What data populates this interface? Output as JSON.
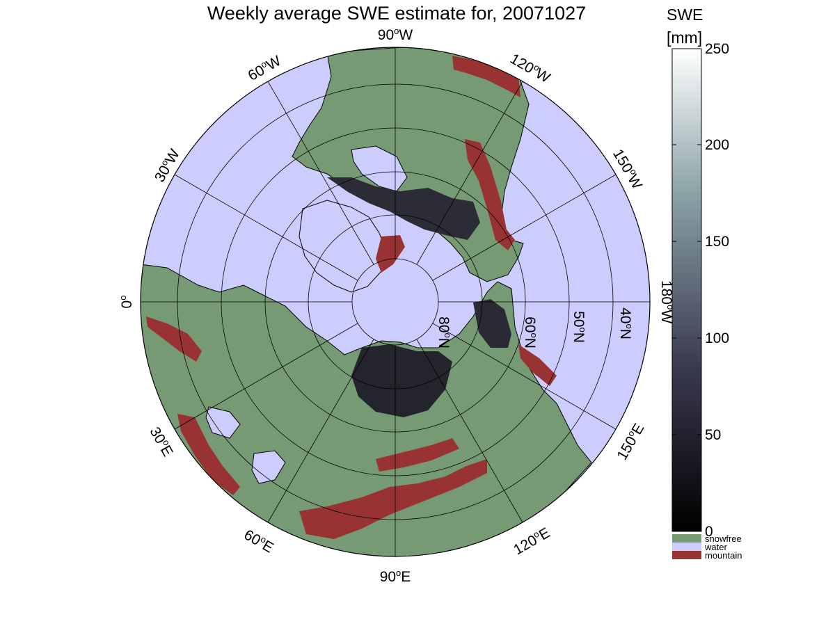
{
  "title": "Weekly average SWE estimate for, 20071027",
  "colorbar": {
    "title_line1": "SWE",
    "title_line2": "[mm]",
    "ticks": [
      0,
      50,
      100,
      150,
      200,
      250
    ],
    "range": [
      0,
      250
    ],
    "gradient": [
      "#000000",
      "#ffffff"
    ],
    "categories": [
      {
        "name": "snowfree",
        "color": "#769a73"
      },
      {
        "name": "water",
        "color": "#ccccfd"
      },
      {
        "name": "mountain",
        "color": "#993333"
      }
    ]
  },
  "map": {
    "projection": "polar stereographic (north pole)",
    "meridian_labels": [
      {
        "deg": "90",
        "hemi": "W"
      },
      {
        "deg": "60",
        "hemi": "W"
      },
      {
        "deg": "120",
        "hemi": "W"
      },
      {
        "deg": "30",
        "hemi": "W"
      },
      {
        "deg": "150",
        "hemi": "W"
      },
      {
        "deg": "0",
        "hemi": ""
      },
      {
        "deg": "180",
        "hemi": "W"
      },
      {
        "deg": "30",
        "hemi": "E"
      },
      {
        "deg": "150",
        "hemi": "E"
      },
      {
        "deg": "60",
        "hemi": "E"
      },
      {
        "deg": "120",
        "hemi": "E"
      },
      {
        "deg": "90",
        "hemi": "E"
      }
    ],
    "parallel_labels": [
      {
        "deg": "80",
        "hemi": "N"
      },
      {
        "deg": "60",
        "hemi": "N"
      },
      {
        "deg": "50",
        "hemi": "N"
      },
      {
        "deg": "40",
        "hemi": "N"
      }
    ]
  }
}
